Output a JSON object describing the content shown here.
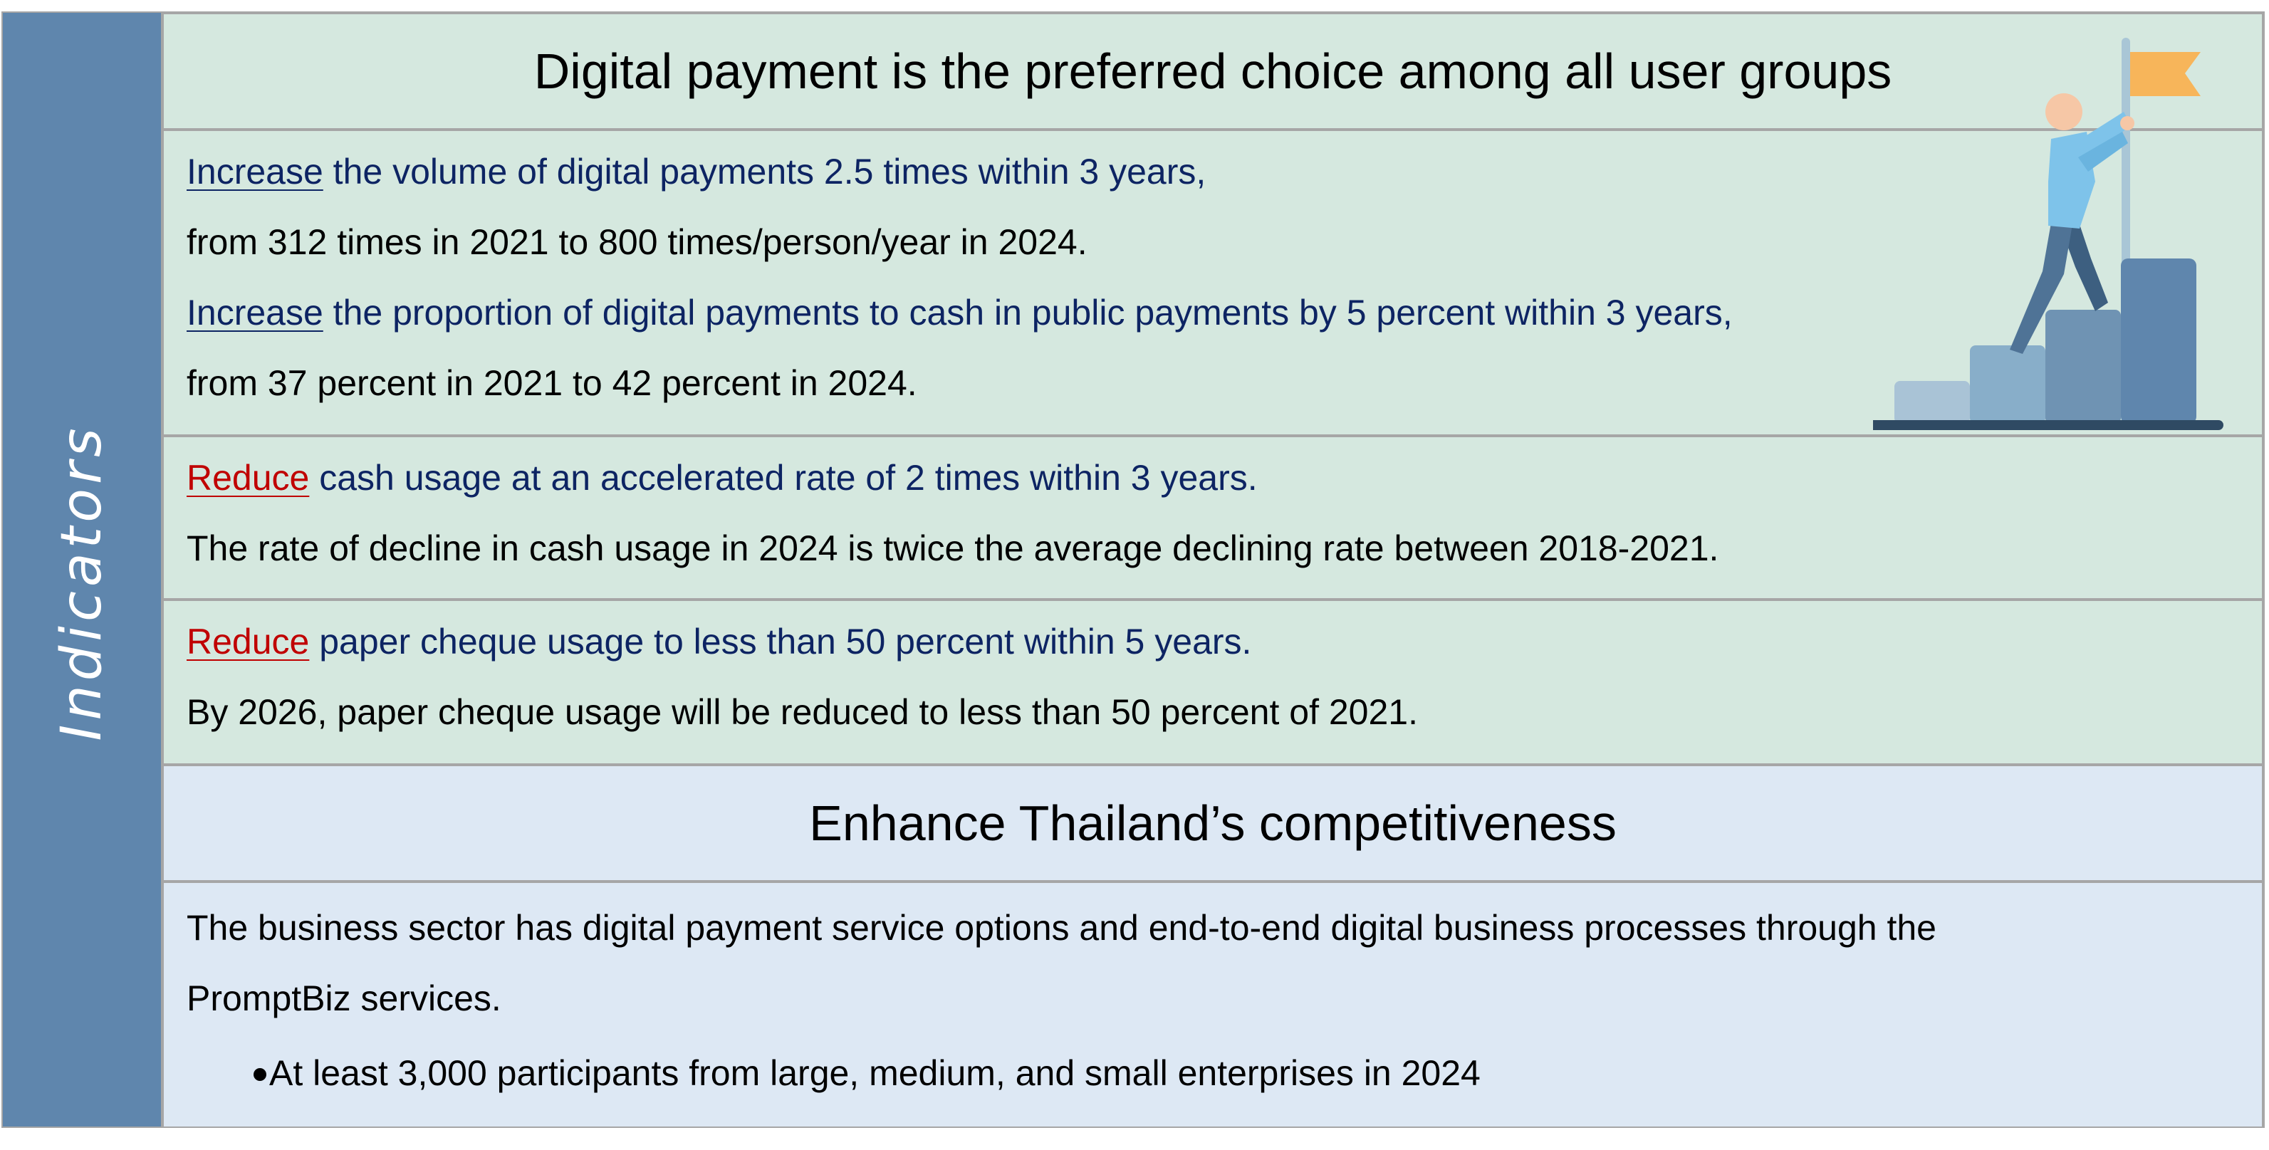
{
  "sidebar": {
    "label": "Indicators"
  },
  "section1": {
    "title": "Digital payment is the preferred choice among all user groups",
    "block1": {
      "line1_keyword": "Increase",
      "line1_rest": " the volume of digital payments 2.5 times within 3 years,",
      "line2": "from 312 times in 2021 to 800 times/person/year in 2024.",
      "line3_keyword": "Increase",
      "line3_rest": " the proportion of digital payments to cash in public payments by 5 percent within 3 years,",
      "line4": "from 37 percent in 2021 to 42 percent in 2024."
    },
    "block2": {
      "line1_keyword": "Reduce",
      "line1_rest": " cash usage at an accelerated rate of 2 times within 3 years.",
      "line2": "The rate of decline in cash usage in 2024 is twice the average declining rate between 2018-2021."
    },
    "block3": {
      "line1_keyword": "Reduce",
      "line1_rest": " paper cheque usage to less than 50 percent within 5 years.",
      "line2": "By 2026, paper cheque usage will be reduced to less than 50 percent of 2021."
    }
  },
  "section2": {
    "title": "Enhance Thailand’s competitiveness",
    "line1": "The business sector has digital payment service options and end-to-end digital business processes through the",
    "line2": "PromptBiz services.",
    "bullet": "At least 3,000 participants from large, medium, and small enterprises in 2024"
  },
  "colors": {
    "sidebar": "#5f86ad",
    "green_bg": "#d5e8df",
    "blue_bg": "#dde8f4",
    "navy_text": "#0d2463",
    "red_keyword": "#c00000",
    "flag": "#f7b55a"
  },
  "icons": {
    "illustration": "person-climbing-steps-with-flag-icon"
  }
}
